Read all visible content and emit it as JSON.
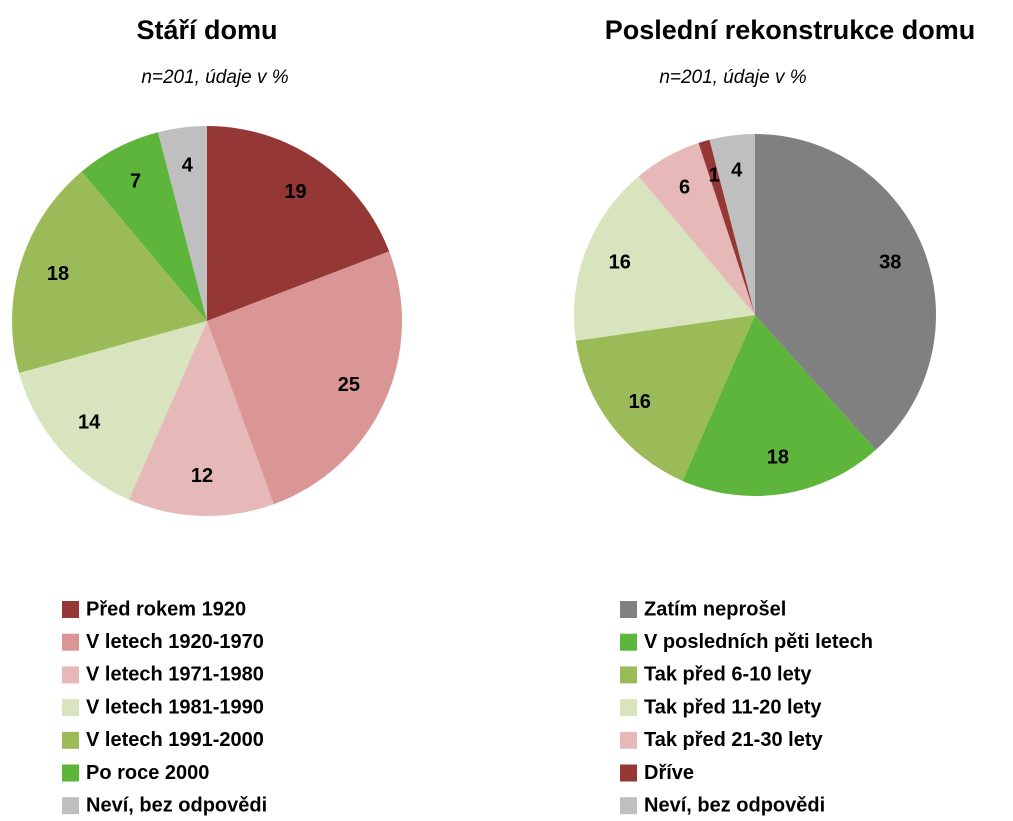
{
  "chart_data": [
    {
      "type": "pie",
      "title": "Stáří domu",
      "subtitle": "n=201, údaje v %",
      "categories": [
        "Před rokem 1920",
        "V letech 1920-1970",
        "V letech 1971-1980",
        "V letech 1981-1990",
        "V letech 1991-2000",
        "Po roce 2000",
        "Neví, bez odpovědi"
      ],
      "values": [
        19,
        25,
        12,
        14,
        18,
        7,
        4
      ],
      "colors": [
        "#953735",
        "#d99694",
        "#e6b9b8",
        "#d7e4bd",
        "#9bbb59",
        "#5db53b",
        "#bfbfbf"
      ]
    },
    {
      "type": "pie",
      "title": "Poslední rekonstrukce domu",
      "subtitle": "n=201, údaje v %",
      "categories": [
        "Zatím neprošel",
        "V posledních pěti letech",
        "Tak před 6-10 lety",
        "Tak před 11-20 lety",
        "Tak před 21-30 lety",
        "Dříve",
        "Neví, bez odpovědi"
      ],
      "values": [
        38,
        18,
        16,
        16,
        6,
        1,
        4
      ],
      "colors": [
        "#808080",
        "#5db53b",
        "#9bbb59",
        "#d7e4bd",
        "#e6b9b8",
        "#953735",
        "#bfbfbf"
      ]
    }
  ]
}
